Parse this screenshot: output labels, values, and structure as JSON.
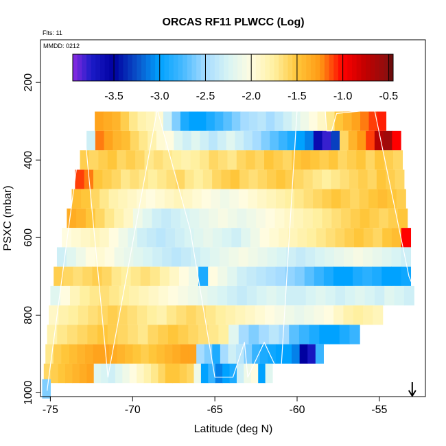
{
  "chart_data": {
    "type": "heatmap",
    "title": "ORCAS RF11 PLWCC (Log)",
    "flights_label": "Flts: 11",
    "date_label": "MMDD: 0212",
    "xlabel": "Latitude (deg N)",
    "ylabel": "PSXC (mbar)",
    "xlim": [
      -75.6,
      -52.2
    ],
    "ylim": [
      1010,
      90
    ],
    "x_ticks": [
      -75,
      -70,
      -65,
      -60,
      -55
    ],
    "x_tick_labels": [
      "-75",
      "-70",
      "-65",
      "-60",
      "-55"
    ],
    "y_ticks": [
      200,
      400,
      600,
      800,
      1000
    ],
    "y_tick_labels": [
      "200",
      "400",
      "600",
      "800",
      "1000"
    ],
    "colorbar": {
      "min": -3.95,
      "max": -0.45,
      "ticks": [
        -3.5,
        -3.0,
        -2.5,
        -2.0,
        -1.5,
        -1.0,
        -0.5
      ],
      "tick_labels": [
        "-3.5",
        "-3.0",
        "-2.5",
        "-2.0",
        "-1.5",
        "-1.0",
        "-0.5"
      ],
      "stops": [
        {
          "v": -3.95,
          "c": "#8a2be2"
        },
        {
          "v": -3.75,
          "c": "#1c1cc8"
        },
        {
          "v": -3.5,
          "c": "#0000a0"
        },
        {
          "v": -3.25,
          "c": "#0a50c8"
        },
        {
          "v": -3.0,
          "c": "#00a2ff"
        },
        {
          "v": -2.75,
          "c": "#46b9ff"
        },
        {
          "v": -2.5,
          "c": "#a6dcff"
        },
        {
          "v": -2.25,
          "c": "#d8f4f4"
        },
        {
          "v": -2.0,
          "c": "#fffce0"
        },
        {
          "v": -1.75,
          "c": "#fff0a0"
        },
        {
          "v": -1.5,
          "c": "#ffc63a"
        },
        {
          "v": -1.25,
          "c": "#ff9a14"
        },
        {
          "v": -1.0,
          "c": "#ff0000"
        },
        {
          "v": -0.75,
          "c": "#c00000"
        },
        {
          "v": -0.5,
          "c": "#8a1010"
        },
        {
          "v": -0.45,
          "c": "#500808"
        }
      ]
    },
    "band_height_mbar": 50,
    "rows": [
      {
        "p": 300,
        "x0": -72.3,
        "x1": -54.6,
        "vals": [
          -1.3,
          -1.35,
          -1.4,
          -1.55,
          -1.7,
          -1.8,
          -1.85,
          -1.95,
          -2.3,
          -2.6,
          -2.9,
          -3.0,
          -3.0,
          -2.9,
          -2.8,
          -2.7,
          -2.6,
          -2.5,
          -2.45,
          -2.4,
          -2.5,
          -2.4,
          -2.3,
          -2.2,
          -2.1,
          -2.0,
          -1.9,
          -1.7,
          -1.5,
          -1.4,
          -1.3,
          -1.2,
          -1.1,
          -1.05
        ]
      },
      {
        "p": 350,
        "x0": -72.8,
        "x1": -53.7,
        "vals": [
          -2.3,
          -1.2,
          -1.3,
          -1.4,
          -1.45,
          -1.6,
          -1.7,
          -1.8,
          -1.95,
          -2.0,
          -2.2,
          -2.3,
          -2.2,
          -2.3,
          -2.4,
          -2.3,
          -2.2,
          -2.3,
          -2.4,
          -2.5,
          -2.6,
          -2.7,
          -2.8,
          -2.9,
          -3.0,
          -3.1,
          -3.6,
          -3.8,
          -3.3,
          -1.6,
          -1.4,
          -1.25,
          -1.1,
          -0.7,
          -0.6,
          -1.0
        ]
      },
      {
        "p": 400,
        "x0": -73.2,
        "x1": -53.6,
        "vals": [
          -1.55,
          -1.6,
          -1.55,
          -1.5,
          -1.6,
          -1.55,
          -1.6,
          -1.7,
          -1.65,
          -1.7,
          -1.75,
          -1.8,
          -1.75,
          -1.7,
          -1.6,
          -1.65,
          -1.7,
          -1.6,
          -1.55,
          -1.6,
          -1.5,
          -1.55,
          -1.6,
          -1.5,
          -1.45,
          -1.5,
          -1.55,
          -1.5,
          -1.6,
          -1.55,
          -1.5,
          -1.6,
          -1.5,
          -1.55,
          -1.6
        ]
      },
      {
        "p": 450,
        "x0": -73.5,
        "x1": -53.5,
        "vals": [
          -1.1,
          -1.2,
          -1.5,
          -1.55,
          -1.6,
          -1.7,
          -1.65,
          -1.7,
          -1.75,
          -1.7,
          -1.65,
          -1.6,
          -1.7,
          -1.75,
          -1.7,
          -1.6,
          -1.55,
          -1.5,
          -1.6,
          -1.65,
          -1.6,
          -1.55,
          -1.5,
          -1.55,
          -1.6,
          -1.65,
          -1.7,
          -1.75,
          -1.7,
          -1.65,
          -1.6,
          -1.55,
          -1.6,
          -1.5,
          -1.55,
          -1.6
        ]
      },
      {
        "p": 500,
        "x0": -73.7,
        "x1": -53.4,
        "vals": [
          -1.45,
          -1.5,
          -1.6,
          -1.7,
          -1.8,
          -1.85,
          -1.9,
          -1.95,
          -2.0,
          -1.95,
          -1.9,
          -1.85,
          -1.9,
          -1.95,
          -2.0,
          -2.05,
          -2.1,
          -2.05,
          -2.0,
          -1.95,
          -1.9,
          -1.85,
          -1.8,
          -1.75,
          -1.7,
          -1.65,
          -1.6,
          -1.55,
          -1.5,
          -1.55,
          -1.6,
          -1.55,
          -1.5,
          -1.45,
          -1.5,
          -1.55
        ]
      },
      {
        "p": 550,
        "x0": -74.0,
        "x1": -53.3,
        "vals": [
          -1.35,
          -1.4,
          -1.5,
          -1.6,
          -1.7,
          -1.8,
          -1.9,
          -2.1,
          -2.2,
          -2.3,
          -2.35,
          -2.3,
          -2.25,
          -2.2,
          -2.15,
          -2.1,
          -2.05,
          -2.1,
          -2.15,
          -2.1,
          -2.05,
          -2.0,
          -1.95,
          -1.9,
          -1.85,
          -1.8,
          -1.75,
          -1.7,
          -1.65,
          -1.6,
          -1.55,
          -1.5,
          -1.55,
          -1.6,
          -1.55,
          -1.5
        ]
      },
      {
        "p": 600,
        "x0": -74.3,
        "x1": -53.1,
        "vals": [
          -2.0,
          -1.95,
          -1.9,
          -1.85,
          -1.9,
          -2.0,
          -2.1,
          -2.2,
          -2.3,
          -2.35,
          -2.4,
          -2.35,
          -2.3,
          -2.25,
          -2.2,
          -2.15,
          -2.2,
          -2.25,
          -2.3,
          -2.2,
          -2.1,
          -2.0,
          -1.95,
          -1.9,
          -1.85,
          -1.8,
          -1.75,
          -1.7,
          -1.65,
          -1.6,
          -1.55,
          -1.5,
          -1.55,
          -1.6,
          -1.5,
          -1.45,
          -1.0
        ]
      },
      {
        "p": 650,
        "x0": -74.6,
        "x1": -53.1,
        "vals": [
          -2.3,
          -2.2,
          -2.1,
          -2.0,
          -1.95,
          -2.0,
          -2.1,
          -2.15,
          -2.2,
          -2.25,
          -2.3,
          -2.35,
          -2.4,
          -2.35,
          -2.3,
          -2.25,
          -2.2,
          -2.15,
          -2.1,
          -2.05,
          -2.1,
          -2.15,
          -2.2,
          -2.25,
          -2.3,
          -2.35,
          -2.3,
          -2.25,
          -2.2,
          -2.15,
          -2.1,
          -2.05,
          -2.1,
          -2.15,
          -2.2,
          -2.25,
          -2.3
        ]
      },
      {
        "p": 700,
        "x0": -74.8,
        "x1": -53.1,
        "vals": [
          -1.55,
          -1.6,
          -1.65,
          -1.6,
          -1.55,
          -1.6,
          -1.7,
          -1.75,
          -1.7,
          -1.65,
          -1.7,
          -1.8,
          -1.9,
          -2.0,
          -2.1,
          -2.9,
          -2.0,
          -2.1,
          -2.2,
          -2.3,
          -2.35,
          -2.4,
          -2.45,
          -2.5,
          -2.55,
          -2.6,
          -2.7,
          -2.8,
          -2.9,
          -3.0,
          -3.0,
          -2.9,
          -2.85,
          -2.9,
          -3.0,
          -3.0,
          -2.95
        ]
      },
      {
        "p": 750,
        "x0": -75.0,
        "x1": -52.9,
        "vals": [
          -2.2,
          -2.0,
          -1.85,
          -1.75,
          -1.7,
          -1.65,
          -1.7,
          -1.75,
          -1.8,
          -1.85,
          -1.9,
          -1.95,
          -2.0,
          -2.05,
          -2.1,
          -2.15,
          -2.2,
          -2.25,
          -2.3,
          -2.35,
          -2.3,
          -2.25,
          -2.2,
          -2.25,
          -2.3,
          -2.3,
          -2.25,
          -2.2,
          -2.25,
          -2.3,
          -2.25,
          -2.2,
          -2.25,
          -2.3,
          -2.2,
          -2.25,
          -2.3
        ]
      },
      {
        "p": 800,
        "x0": -75.1,
        "x1": -54.8,
        "vals": [
          -1.9,
          -1.8,
          -1.75,
          -1.7,
          -1.65,
          -1.6,
          -1.55,
          -1.6,
          -1.65,
          -1.7,
          -1.75,
          -1.8,
          -1.7,
          -1.65,
          -1.6,
          -1.65,
          -1.7,
          -1.75,
          -1.8,
          -1.85,
          -1.9,
          -1.95,
          -2.0,
          -2.05,
          -2.1,
          -2.15,
          -2.1,
          -2.05,
          -2.0,
          -1.9,
          -1.8,
          -1.75,
          -1.8,
          -1.85
        ]
      },
      {
        "p": 850,
        "x0": -75.2,
        "x1": -56.2,
        "vals": [
          -1.8,
          -1.7,
          -1.65,
          -1.6,
          -1.55,
          -1.5,
          -1.55,
          -1.6,
          -1.65,
          -1.7,
          -1.6,
          -1.55,
          -1.5,
          -1.55,
          -1.6,
          -1.65,
          -1.7,
          -1.75,
          -2.2,
          -2.5,
          -2.6,
          -2.5,
          -2.4,
          -2.5,
          -2.7,
          -2.8,
          -2.9,
          -3.0,
          -3.0,
          -2.9,
          -2.8
        ]
      },
      {
        "p": 900,
        "x0": -75.3,
        "x1": -58.4,
        "vals": [
          -1.7,
          -1.55,
          -1.5,
          -1.45,
          -1.4,
          -1.35,
          -1.3,
          -1.3,
          -1.35,
          -1.4,
          -1.45,
          -1.5,
          -1.55,
          -1.5,
          -1.45,
          -1.4,
          -1.35,
          -1.3,
          -1.3,
          -2.5,
          -2.6,
          -2.9,
          -2.5,
          -2.3,
          -2.4,
          -2.6,
          -2.8,
          -2.9,
          -2.95,
          -3.0,
          -3.0,
          -3.1,
          -3.5,
          -3.7,
          -2.8
        ]
      },
      {
        "p": 950,
        "x0": -75.4,
        "x1": -61.5,
        "vals": [
          -1.6,
          -1.55,
          -1.5,
          -1.45,
          -1.4,
          -1.35,
          -1.3,
          -2.2,
          -2.25,
          -2.3,
          -2.2,
          -2.1,
          -2.0,
          -1.9,
          -1.8,
          -1.7,
          -1.6,
          -1.5,
          -1.5,
          -1.55,
          -1.6,
          -2.1,
          -3.0,
          -2.8,
          -3.1,
          -3.0,
          -2.9,
          -2.3,
          -2.1,
          -2.0,
          -3.0,
          -2.2
        ]
      },
      {
        "p": 990,
        "x0": -75.5,
        "x1": -75.0,
        "vals": [
          -2.6
        ]
      }
    ],
    "flight_track": {
      "name": "flight-track",
      "color": "#ffffff",
      "points": [
        [
          -75.2,
          995
        ],
        [
          -73.0,
          290
        ],
        [
          -71.5,
          960
        ],
        [
          -68.5,
          270
        ],
        [
          -66.5,
          580
        ],
        [
          -65.0,
          960
        ],
        [
          -63.9,
          960
        ],
        [
          -63.2,
          870
        ],
        [
          -63.0,
          960
        ],
        [
          -62.0,
          870
        ],
        [
          -61.0,
          960
        ],
        [
          -60.0,
          270
        ],
        [
          -58.3,
          270
        ],
        [
          -58.2,
          325
        ],
        [
          -57.9,
          325
        ],
        [
          -57.6,
          280
        ],
        [
          -55.3,
          270
        ],
        [
          -53.2,
          700
        ],
        [
          -53.0,
          720
        ]
      ]
    },
    "marker_arrow": {
      "x": -53.0,
      "label": "down-arrow"
    }
  }
}
